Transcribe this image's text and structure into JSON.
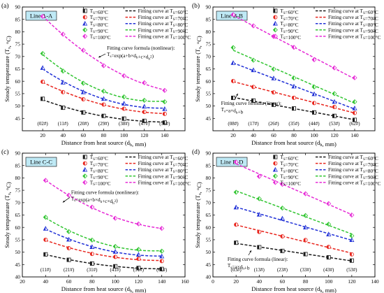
{
  "legend_labels": {
    "markers": [
      "T_S=60°C",
      "T_S=70°C",
      "T_S=80°C",
      "T_S=90°C",
      "T_S=100°C"
    ],
    "fits": [
      "Fitting curve at T_S=60°C",
      "Fitting curve at T_S=70°C",
      "Fitting curve at T_S=80°C",
      "Fitting curve at T_S=90°C",
      "Fitting curve at T_S=100°C"
    ]
  },
  "series_colors": [
    "#1a1a1a",
    "#e8251d",
    "#1f2fd6",
    "#31c531",
    "#e62ad6"
  ],
  "chart_data": [
    {
      "id": "a",
      "type": "scatter",
      "panel_letter": "(a)",
      "line_label": "Line A-A",
      "xlabel": "Distance from heat source (d_h, mm)",
      "ylabel": "Steady temperature (T_s, °C)",
      "xlim": [
        0,
        160
      ],
      "ylim": [
        40,
        90
      ],
      "xticks": [
        20,
        40,
        60,
        80,
        100,
        120,
        140
      ],
      "yticks": [
        45,
        50,
        55,
        60,
        65,
        70,
        75,
        80,
        85,
        90
      ],
      "x": [
        20,
        40,
        60,
        80,
        100,
        120,
        140
      ],
      "point_labels": [
        "(02#)",
        "(11#)",
        "(20#)",
        "(29#)",
        "(38#)",
        "(47#)",
        "(56#)"
      ],
      "formula_title": "Fitting curve formula (nonlinear):",
      "formula": "T_s=exp(a+b×d_h+c×d_h²)",
      "series": [
        {
          "name": "T_S=60°C",
          "values": [
            52.9,
            49.3,
            47.4,
            46.0,
            44.9,
            44.0,
            43.3
          ]
        },
        {
          "name": "T_S=70°C",
          "values": [
            59.8,
            55.6,
            52.7,
            50.6,
            48.9,
            47.6,
            46.8
          ]
        },
        {
          "name": "T_S=80°C",
          "values": [
            65.4,
            59.5,
            55.6,
            52.9,
            51.0,
            49.8,
            48.8
          ]
        },
        {
          "name": "T_S=90°C",
          "values": [
            71.2,
            64.1,
            59.2,
            56.0,
            53.7,
            52.3,
            51.7
          ]
        },
        {
          "name": "T_S=100°C",
          "values": [
            86.2,
            79.0,
            72.5,
            66.3,
            62.2,
            59.4,
            56.3
          ]
        }
      ]
    },
    {
      "id": "b",
      "type": "scatter",
      "panel_letter": "(b)",
      "line_label": "Line B-B",
      "xlabel": "Distance from heat source (d_h, mm)",
      "ylabel": "Steady temperature (T_s, °C)",
      "xlim": [
        0,
        160
      ],
      "ylim": [
        40,
        90
      ],
      "xticks": [
        20,
        40,
        60,
        80,
        100,
        120,
        140
      ],
      "yticks": [
        45,
        50,
        55,
        60,
        65,
        70,
        75,
        80,
        85,
        90
      ],
      "x": [
        20,
        40,
        60,
        80,
        100,
        120,
        140
      ],
      "point_labels": [
        "(08#)",
        "(17#)",
        "(26#)",
        "(35#)",
        "(44#)",
        "(53#)",
        "(62#)"
      ],
      "formula_title": "Fitting curve formula (linear):",
      "formula": "T_s=a×d_h+b",
      "series": [
        {
          "name": "T_S=60°C",
          "values": [
            53.3,
            52.2,
            50.5,
            49.0,
            47.4,
            46.0,
            44.4
          ]
        },
        {
          "name": "T_S=70°C",
          "values": [
            60.1,
            57.7,
            55.5,
            53.3,
            51.2,
            49.6,
            47.2
          ]
        },
        {
          "name": "T_S=80°C",
          "values": [
            67.4,
            64.5,
            61.2,
            57.9,
            54.8,
            51.7,
            49.1
          ]
        },
        {
          "name": "T_S=90°C",
          "values": [
            73.6,
            68.5,
            64.9,
            61.3,
            57.7,
            55.0,
            51.7
          ]
        },
        {
          "name": "T_S=100°C",
          "values": [
            86.9,
            82.4,
            78.1,
            73.7,
            68.7,
            65.4,
            61.4
          ]
        }
      ]
    },
    {
      "id": "c",
      "type": "scatter",
      "panel_letter": "(c)",
      "line_label": "Line C-C",
      "xlabel": "Distance from heat source (d_h, mm)",
      "ylabel": "Steady temperature (T_s, °C)",
      "xlim": [
        20,
        160
      ],
      "ylim": [
        40,
        90
      ],
      "xticks": [
        20,
        40,
        60,
        80,
        100,
        120,
        140,
        160
      ],
      "yticks": [
        40,
        45,
        50,
        55,
        60,
        65,
        70,
        75,
        80,
        85,
        90
      ],
      "x": [
        40,
        60,
        80,
        100,
        120,
        140
      ],
      "point_labels": [
        "(11#)",
        "(21#)",
        "(31#)",
        "(41#)",
        "(51#)",
        "(61#)"
      ],
      "formula_title": "Fitting curve formula (nonlinear):",
      "formula": "T_s=exp(a+b×d_h+c×d_h²)",
      "series": [
        {
          "name": "T_S=60°C",
          "values": [
            49.1,
            46.9,
            45.4,
            44.3,
            43.6,
            43.2
          ]
        },
        {
          "name": "T_S=70°C",
          "values": [
            55.0,
            51.6,
            49.3,
            48.1,
            47.3,
            46.4
          ]
        },
        {
          "name": "T_S=80°C",
          "values": [
            59.5,
            55.1,
            52.1,
            50.2,
            49.0,
            48.3
          ]
        },
        {
          "name": "T_S=90°C",
          "values": [
            64.1,
            58.3,
            54.9,
            52.3,
            51.1,
            50.4
          ]
        },
        {
          "name": "T_S=100°C",
          "values": [
            79.0,
            73.0,
            68.2,
            63.7,
            61.4,
            59.6
          ]
        }
      ]
    },
    {
      "id": "d",
      "type": "scatter",
      "panel_letter": "(d)",
      "line_label": "Line D-D",
      "xlabel": "Distance from heat source (d_h, mm)",
      "ylabel": "Steady temperature (T_s, °C)",
      "xlim": [
        0,
        140
      ],
      "ylim": [
        40,
        90
      ],
      "xticks": [
        0,
        20,
        40,
        60,
        80,
        100,
        120,
        140
      ],
      "yticks": [
        40,
        45,
        50,
        55,
        60,
        65,
        70,
        75,
        80,
        85,
        90
      ],
      "x": [
        20,
        40,
        60,
        80,
        100,
        120
      ],
      "point_labels": [
        "(03#)",
        "(13#)",
        "(23#)",
        "(33#)",
        "(43#)",
        "(53#)"
      ],
      "formula_title": "Fitting curve formula (linear):",
      "formula": "T_s=a×d_h+b",
      "series": [
        {
          "name": "T_S=60°C",
          "values": [
            53.8,
            52.0,
            50.5,
            49.2,
            47.9,
            46.6
          ]
        },
        {
          "name": "T_S=70°C",
          "values": [
            61.1,
            58.2,
            56.4,
            54.9,
            52.1,
            49.1
          ]
        },
        {
          "name": "T_S=80°C",
          "values": [
            68.1,
            65.2,
            63.6,
            60.0,
            57.2,
            54.9
          ]
        },
        {
          "name": "T_S=90°C",
          "values": [
            74.2,
            71.6,
            67.8,
            64.8,
            61.3,
            56.6
          ]
        },
        {
          "name": "T_S=100°C",
          "values": [
            86.4,
            80.6,
            77.4,
            73.6,
            69.6,
            65.0
          ]
        }
      ]
    }
  ]
}
